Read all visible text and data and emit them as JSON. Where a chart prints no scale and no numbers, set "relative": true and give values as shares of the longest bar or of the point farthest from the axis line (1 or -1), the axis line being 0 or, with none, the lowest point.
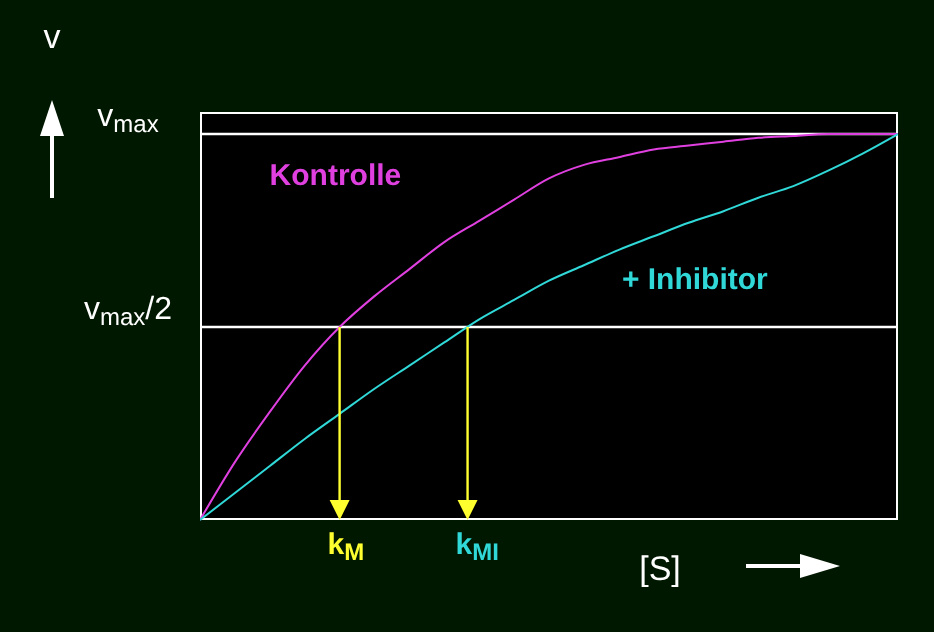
{
  "chart_data": {
    "type": "line",
    "relative": true,
    "xlabel": "[S]",
    "ylabel": "v",
    "categories": [
      null,
      null,
      null,
      null,
      null,
      null,
      null,
      null,
      null,
      null,
      null,
      null,
      null,
      null,
      null,
      null,
      null,
      null,
      null,
      null,
      null
    ],
    "series": [
      {
        "name": "Kontrolle",
        "color": "#e040e0",
        "values": [
          0,
          0.15,
          0.28,
          0.4,
          0.5,
          0.58,
          0.65,
          0.72,
          0.775,
          0.83,
          0.885,
          0.92,
          0.94,
          0.96,
          0.97,
          0.98,
          0.99,
          0.995,
          1,
          1,
          1
        ]
      },
      {
        "name": "+ Inhibitor",
        "color": "#30d8d8",
        "values": [
          0,
          0.07,
          0.14,
          0.21,
          0.275,
          0.34,
          0.4,
          0.46,
          0.52,
          0.57,
          0.62,
          0.66,
          0.7,
          0.735,
          0.77,
          0.8,
          0.835,
          0.865,
          0.905,
          0.95,
          1
        ]
      }
    ],
    "ref_lines": [
      {
        "axis": "y",
        "value": 1,
        "label": "v$_{max}$",
        "color": "#ffffff"
      },
      {
        "axis": "y",
        "value": 0.5,
        "label": "v$_{max}$/2",
        "color": "#ffffff"
      }
    ],
    "annotations": [
      {
        "text": "k$_{M}$",
        "y": 0.5
      },
      {
        "text": "k$_{MI}$",
        "y": 0.5
      }
    ],
    "marker": "none",
    "line_style": "solid"
  }
}
